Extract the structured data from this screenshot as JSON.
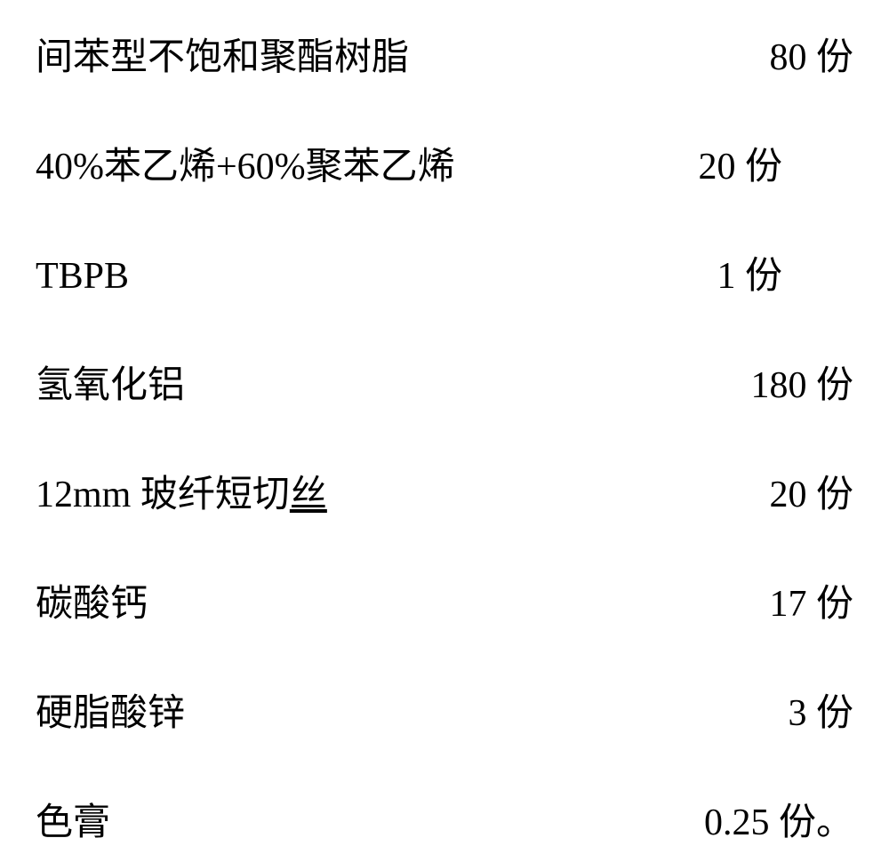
{
  "ingredients": [
    {
      "name": "间苯型不饱和聚酯树脂",
      "amount": "80 份"
    },
    {
      "name": "40%苯乙烯+60%聚苯乙烯",
      "amount": "20 份"
    },
    {
      "name": "TBPB",
      "amount": "1 份"
    },
    {
      "name": "氢氧化铝",
      "amount": "180 份"
    },
    {
      "prefix": "12mm 玻纤短切",
      "underlined": "丝",
      "amount": "20 份"
    },
    {
      "name": "碳酸钙",
      "amount": "17 份"
    },
    {
      "name": "硬脂酸锌",
      "amount": "3 份"
    },
    {
      "name": "色膏",
      "amount": "0.25 份。"
    }
  ]
}
